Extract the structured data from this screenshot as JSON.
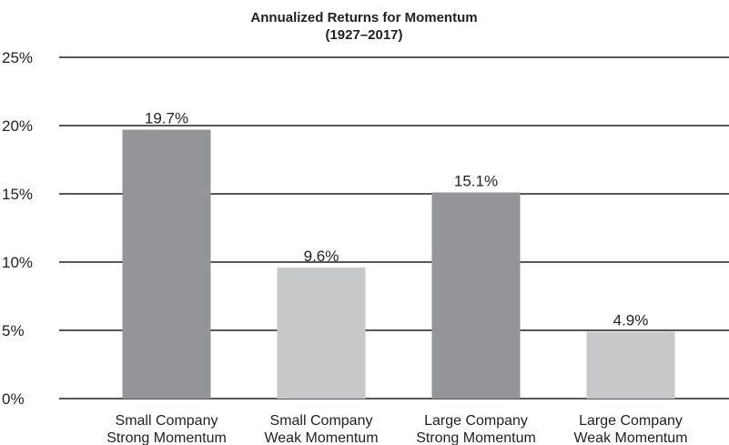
{
  "chart_data": {
    "type": "bar",
    "title": "Annualized Returns for Momentum",
    "subtitle": "(1927–2017)",
    "categories": [
      "Small Company\nStrong Momentum",
      "Small Company\nWeak Momentum",
      "Large Company\nStrong Momentum",
      "Large Company\nWeak Momentum"
    ],
    "values": [
      19.7,
      9.6,
      15.1,
      4.9
    ],
    "value_labels": [
      "19.7%",
      "9.6%",
      "15.1%",
      "4.9%"
    ],
    "colors": [
      "#939598",
      "#c7c8ca",
      "#939598",
      "#c7c8ca"
    ],
    "ylim": [
      0,
      25
    ],
    "yticks": [
      {
        "value": 0,
        "label": "0%"
      },
      {
        "value": 5,
        "label": "5%"
      },
      {
        "value": 10,
        "label": "10%"
      },
      {
        "value": 15,
        "label": "15%"
      },
      {
        "value": 20,
        "label": "20%"
      },
      {
        "value": 25,
        "label": "25%"
      }
    ],
    "grid": true
  }
}
